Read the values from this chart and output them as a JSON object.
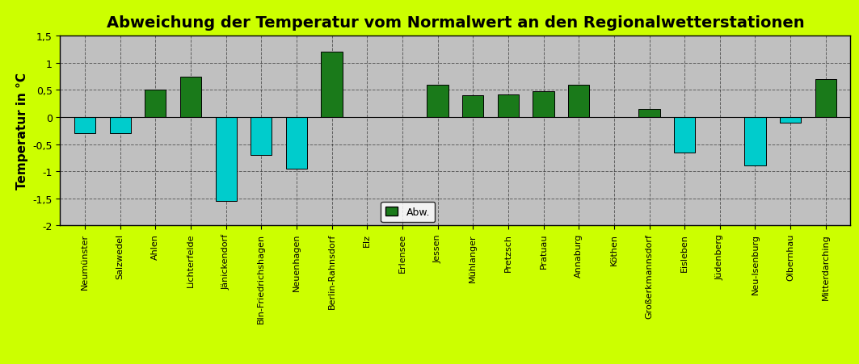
{
  "title": "Abweichung der Temperatur vom Normalwert an den Regionalwetterstationen",
  "ylabel": "Temperatur in °C",
  "categories": [
    "Neumünster",
    "Salzwedel",
    "Ahlen",
    "Lichterfelde",
    "Jänickendorf",
    "Bln-Friedrichshagen",
    "Neuenhagen",
    "Berlin-Rahnsdorf",
    "Elz",
    "Erlensee",
    "Jessen",
    "Mühlanger",
    "Pretzsch",
    "Pratuau",
    "Annaburg",
    "Köthen",
    "Großerkmannsdorf",
    "Eisleben",
    "Jüdenberg",
    "Neu-Isenburg",
    "Olbernhau",
    "Mitterdarching"
  ],
  "values": [
    -0.3,
    -0.3,
    0.5,
    0.75,
    -1.55,
    -0.7,
    -0.95,
    1.2,
    0.0,
    0.0,
    0.6,
    0.4,
    0.42,
    0.47,
    0.6,
    0.0,
    0.15,
    -0.65,
    0.0,
    -0.9,
    -0.1,
    0.7
  ],
  "bar_color_positive": "#1a7a1a",
  "bar_color_negative": "#00cccc",
  "background_outer": "#ccff00",
  "background_plot": "#c0c0c0",
  "ylim": [
    -2.0,
    1.5
  ],
  "yticks": [
    -2.0,
    -1.5,
    -1.0,
    -0.5,
    0.0,
    0.5,
    1.0,
    1.5
  ],
  "ytick_labels": [
    "-2",
    "-1,5",
    "-1",
    "-0,5",
    "0",
    "0,5",
    "1",
    "1,5"
  ],
  "legend_label": "Abw.",
  "title_fontsize": 14,
  "ylabel_fontsize": 11,
  "tick_fontsize": 9,
  "xtick_fontsize": 8
}
